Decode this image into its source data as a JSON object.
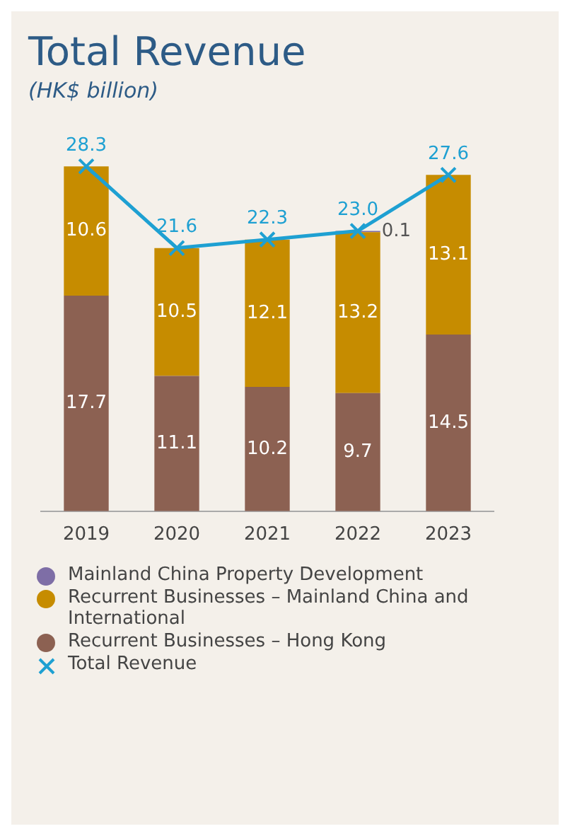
{
  "chart_data": {
    "type": "bar",
    "title": "Total Revenue",
    "subtitle": "(HK$ billion)",
    "categories": [
      "2019",
      "2020",
      "2021",
      "2022",
      "2023"
    ],
    "stacked": true,
    "legend": "bottom",
    "grid": false,
    "tick_labels": "x",
    "marker": "cross",
    "series": [
      {
        "name": "Recurrent Businesses – Hong Kong",
        "color": "#8c6152",
        "values": [
          17.7,
          11.1,
          10.2,
          9.7,
          14.5
        ],
        "value_labels": [
          "17.7",
          "11.1",
          "10.2",
          "9.7",
          "14.5"
        ]
      },
      {
        "name": "Recurrent Businesses – Mainland China and International",
        "color": "#c68c00",
        "values": [
          10.6,
          10.5,
          12.1,
          13.2,
          13.1
        ],
        "value_labels": [
          "10.6",
          "10.5",
          "12.1",
          "13.2",
          "13.1"
        ]
      },
      {
        "name": "Mainland China Property Development",
        "color": "#7e6ea6",
        "values": [
          null,
          null,
          null,
          0.1,
          null
        ],
        "value_labels": [
          null,
          null,
          null,
          "0.1",
          null
        ]
      },
      {
        "name": "Total Revenue",
        "type": "line",
        "color": "#1ea0d2",
        "values": [
          28.3,
          21.6,
          22.3,
          23.0,
          27.6
        ],
        "value_labels": [
          "28.3",
          "21.6",
          "22.3",
          "23.0",
          "27.6"
        ]
      }
    ]
  }
}
